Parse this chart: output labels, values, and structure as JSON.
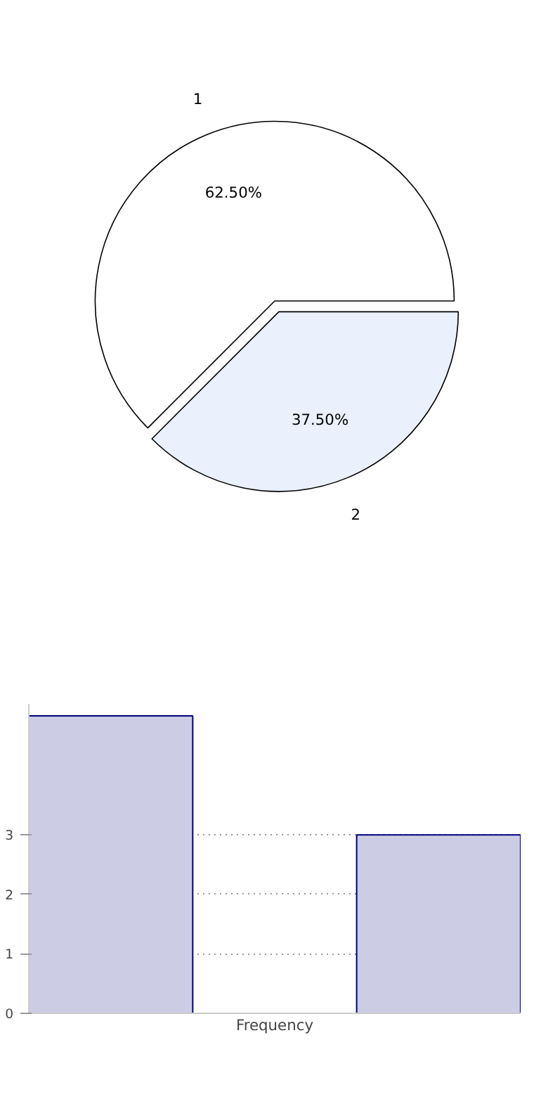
{
  "chart_data": [
    {
      "type": "pie",
      "categories": [
        "1",
        "2"
      ],
      "values": [
        62.5,
        37.5
      ],
      "colors": [
        "#ffffff",
        "#eaf0fc"
      ],
      "value_labels": [
        "62.50%",
        "37.50%"
      ]
    },
    {
      "type": "bar",
      "categories": [
        null,
        null,
        null
      ],
      "values": [
        5,
        0,
        3
      ],
      "color": "#ccccE4",
      "xlabel": "Frequency",
      "ylim": [
        0,
        5.2
      ],
      "yticks": [
        0,
        1,
        2,
        3
      ],
      "grid": "y",
      "tick_labels": "y"
    }
  ]
}
